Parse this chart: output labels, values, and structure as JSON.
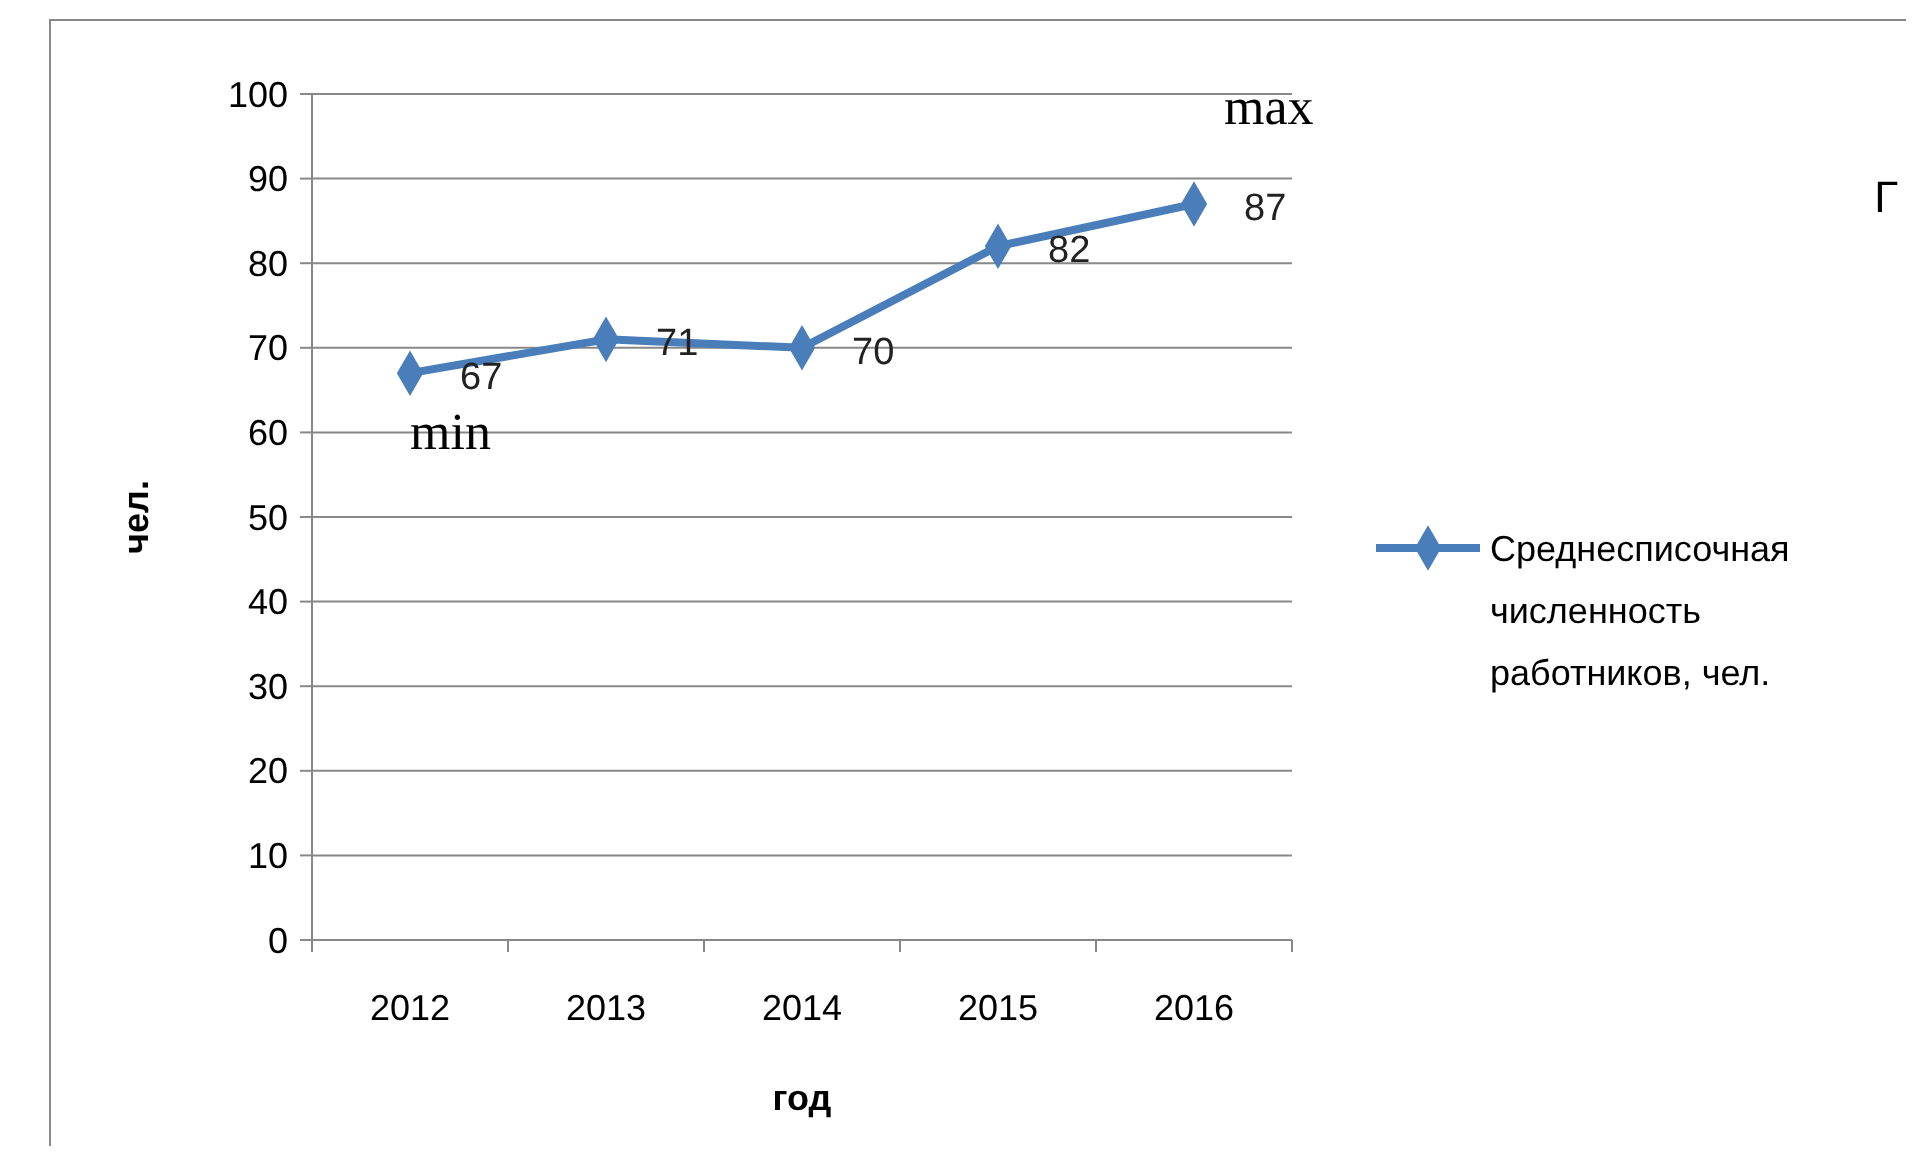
{
  "chart_data": {
    "type": "line",
    "xlabel": "год",
    "ylabel": "чел.",
    "categories": [
      "2012",
      "2013",
      "2014",
      "2015",
      "2016"
    ],
    "series": [
      {
        "name": "Среднесписочная численность работников, чел.",
        "color": "#4a7ebb",
        "values": [
          67,
          71,
          70,
          82,
          87
        ]
      }
    ],
    "ylim": [
      0,
      100
    ],
    "yticks": [
      0,
      10,
      20,
      30,
      40,
      50,
      60,
      70,
      80,
      90,
      100
    ],
    "grid": "y",
    "legend": "right",
    "marker": "diamond",
    "data_labels": true,
    "annotations": [
      {
        "text": "min",
        "x": "2012",
        "y": 67
      },
      {
        "text": "max",
        "x": "2016",
        "y": 87
      },
      "Г"
    ]
  }
}
